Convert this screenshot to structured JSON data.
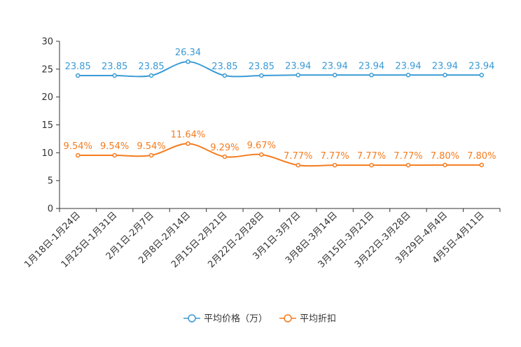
{
  "chart_data": {
    "type": "line",
    "categories": [
      "1月18日-1月24日",
      "1月25日-1月31日",
      "2月1日-2月7日",
      "2月8日-2月14日",
      "2月15日-2月21日",
      "2月22日-2月28日",
      "3月1日-3月7日",
      "3月8日-3月14日",
      "3月15日-3月21日",
      "3月22日-3月28日",
      "3月29日-4月4日",
      "4月5日-4月11日"
    ],
    "ylim": [
      0,
      30
    ],
    "yticks": [
      0,
      5,
      10,
      15,
      20,
      25,
      30
    ],
    "series": [
      {
        "name": "平均价格（万）",
        "color": "#3a9bd5",
        "values": [
          23.85,
          23.85,
          23.85,
          26.34,
          23.85,
          23.85,
          23.94,
          23.94,
          23.94,
          23.94,
          23.94,
          23.94
        ],
        "labels": [
          "23.85",
          "23.85",
          "23.85",
          "26.34",
          "23.85",
          "23.85",
          "23.94",
          "23.94",
          "23.94",
          "23.94",
          "23.94",
          "23.94"
        ]
      },
      {
        "name": "平均折扣",
        "color": "#f57c1f",
        "values": [
          9.54,
          9.54,
          9.54,
          11.64,
          9.29,
          9.67,
          7.77,
          7.77,
          7.77,
          7.77,
          7.8,
          7.8
        ],
        "labels": [
          "9.54%",
          "9.54%",
          "9.54%",
          "11.64%",
          "9.29%",
          "9.67%",
          "7.77%",
          "7.77%",
          "7.77%",
          "7.77%",
          "7.80%",
          "7.80%"
        ]
      }
    ],
    "legend": "bottom-center",
    "grid": false
  }
}
